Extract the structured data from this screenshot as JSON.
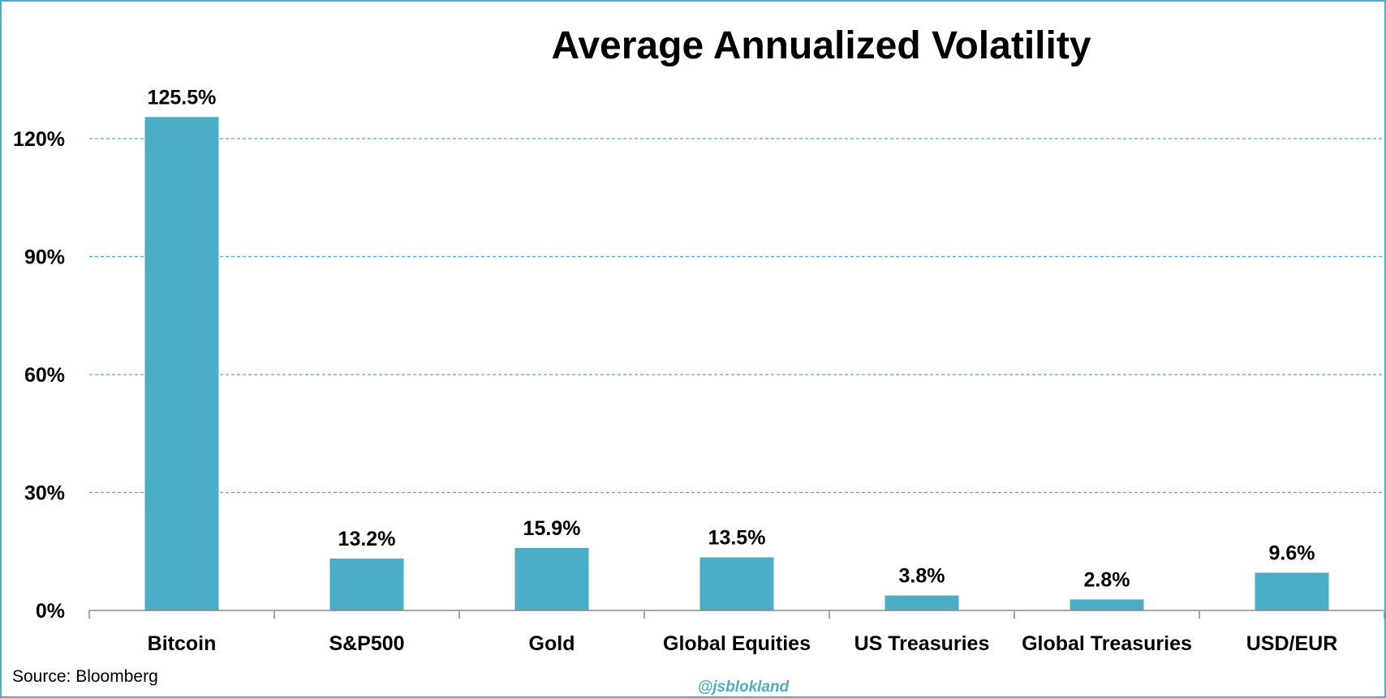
{
  "chart_data": {
    "type": "bar",
    "title": "Average Annualized Volatility",
    "categories": [
      "Bitcoin",
      "S&P500",
      "Gold",
      "Global Equities",
      "US Treasuries",
      "Global Treasuries",
      "USD/EUR"
    ],
    "values": [
      125.5,
      13.2,
      15.9,
      13.5,
      3.8,
      2.8,
      9.6
    ],
    "data_labels": [
      "125.5%",
      "13.2%",
      "15.9%",
      "13.5%",
      "3.8%",
      "2.8%",
      "9.6%"
    ],
    "y_ticks": [
      0,
      30,
      60,
      90,
      120
    ],
    "y_tick_labels": [
      "0%",
      "30%",
      "60%",
      "90%",
      "120%"
    ],
    "ylim": [
      0,
      130
    ],
    "xlabel": "",
    "ylabel": "",
    "grid": true,
    "legend": "none",
    "bar_color": "#4BADC6",
    "grid_color": "#4BADC6"
  },
  "footer": {
    "source": "Source: Bloomberg",
    "handle": "@jsblokland"
  }
}
